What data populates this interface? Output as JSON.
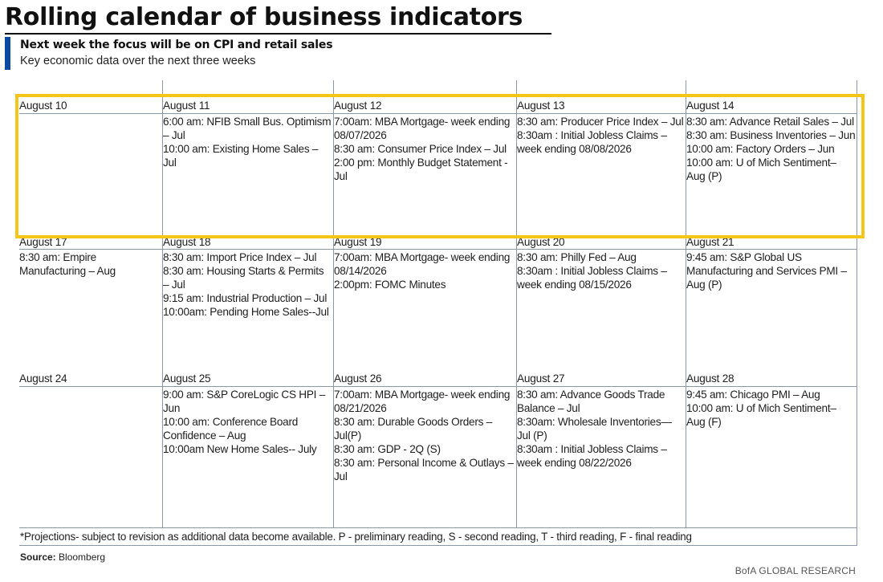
{
  "header": {
    "title": "Rolling calendar of business indicators",
    "subtitle": "Next week the focus will be on CPI and retail sales",
    "description": "Key economic data over the next three weeks"
  },
  "weeks": [
    {
      "days": [
        {
          "date": "August 10",
          "events": []
        },
        {
          "date": "August 11",
          "events": [
            "6:00 am: NFIB Small Bus. Optimism – Jul",
            "10:00 am: Existing Home Sales – Jul"
          ]
        },
        {
          "date": "August 12",
          "events": [
            "7:00am: MBA Mortgage- week ending 08/07/2026",
            "8:30 am: Consumer Price Index – Jul",
            "2:00 pm: Monthly Budget Statement - Jul"
          ]
        },
        {
          "date": "August 13",
          "events": [
            "8:30 am: Producer Price Index – Jul",
            "8:30am : Initial Jobless Claims – week ending 08/08/2026"
          ]
        },
        {
          "date": "August 14",
          "events": [
            "8:30 am: Advance Retail Sales – Jul",
            "8:30 am: Business Inventories – Jun",
            "10:00 am: Factory Orders – Jun",
            "10:00 am: U of Mich Sentiment– Aug (P)"
          ]
        }
      ]
    },
    {
      "days": [
        {
          "date": "August 17",
          "events": [
            "8:30 am: Empire Manufacturing – Aug"
          ]
        },
        {
          "date": "August 18",
          "events": [
            "8:30 am: Import Price Index – Jul",
            "8:30 am: Housing Starts & Permits – Jul",
            "9:15 am: Industrial Production – Jul",
            "10:00am: Pending Home Sales--Jul"
          ]
        },
        {
          "date": "August 19",
          "events": [
            "7:00am: MBA Mortgage- week ending 08/14/2026",
            "2:00pm: FOMC Minutes"
          ]
        },
        {
          "date": "August 20",
          "events": [
            "8:30 am: Philly Fed – Aug",
            "8:30am : Initial Jobless Claims – week ending 08/15/2026"
          ]
        },
        {
          "date": "August 21",
          "events": [
            "9:45 am: S&P Global US Manufacturing and Services PMI – Aug (P)"
          ]
        }
      ]
    },
    {
      "days": [
        {
          "date": "August 24",
          "events": []
        },
        {
          "date": "August 25",
          "events": [
            "9:00 am: S&P CoreLogic CS HPI – Jun",
            "10:00 am: Conference Board Confidence – Aug",
            "10:00am New Home Sales-- July"
          ]
        },
        {
          "date": "August 26",
          "events": [
            "7:00am: MBA Mortgage- week ending 08/21/2026",
            "8:30 am: Durable Goods Orders – Jul(P)",
            "8:30 am: GDP - 2Q (S)",
            "8:30 am: Personal Income & Outlays – Jul"
          ]
        },
        {
          "date": "August 27",
          "events": [
            "8:30 am: Advance Goods Trade Balance – Jul",
            "8:30am: Wholesale Inventories—Jul (P)",
            "8:30am : Initial Jobless Claims – week ending 08/22/2026"
          ]
        },
        {
          "date": "August 28",
          "events": [
            "9:45 am: Chicago PMI – Aug",
            "10:00 am: U of Mich Sentiment– Aug (F)"
          ]
        }
      ]
    }
  ],
  "footnote": "*Projections- subject to revision as additional data become available. P - preliminary reading, S - second reading, T - third reading, F - final reading",
  "source": {
    "label": "Source:",
    "text": "Bloomberg"
  },
  "brand": "BofA GLOBAL RESEARCH",
  "colors": {
    "accent": "#0b4aa2",
    "highlight": "#f5c518",
    "gridline": "#8b98aa"
  }
}
